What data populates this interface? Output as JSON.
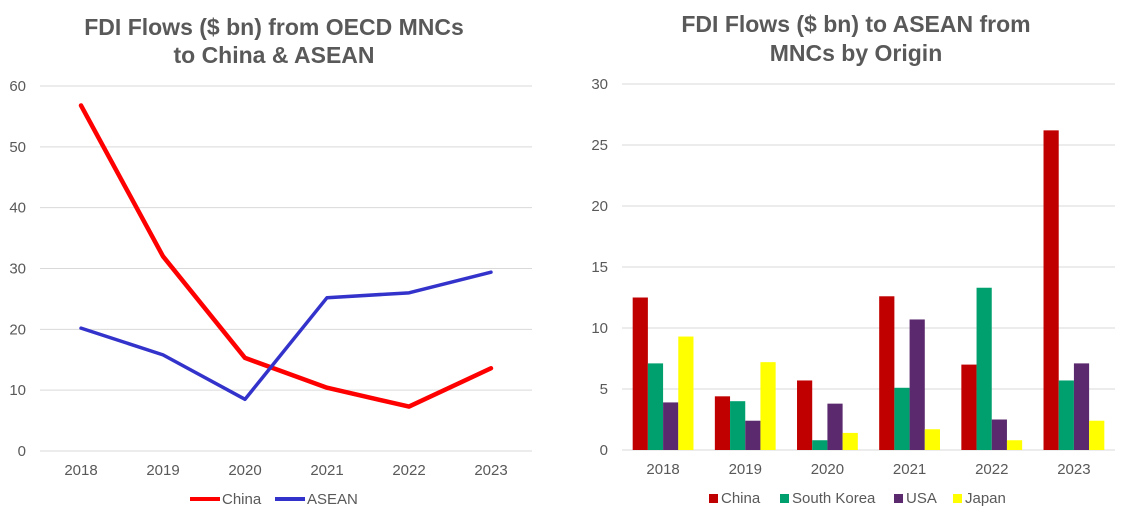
{
  "chart_data": [
    {
      "type": "line",
      "title_line1": "FDI Flows ($ bn) from OECD MNCs",
      "title_line2": "to China & ASEAN",
      "categories": [
        "2018",
        "2019",
        "2020",
        "2021",
        "2022",
        "2023"
      ],
      "series": [
        {
          "name": "China",
          "color": "#ff0000",
          "values": [
            56.8,
            32.0,
            15.3,
            10.4,
            7.3,
            13.6
          ]
        },
        {
          "name": "ASEAN",
          "color": "#3333cc",
          "values": [
            20.2,
            15.8,
            8.5,
            25.2,
            26.0,
            29.4
          ]
        }
      ],
      "ylim": [
        0,
        60
      ],
      "yticks": [
        "0",
        "10",
        "20",
        "30",
        "40",
        "50",
        "60"
      ],
      "grid": true,
      "legend": "bottom",
      "xlabel": "",
      "ylabel": ""
    },
    {
      "type": "bar",
      "title_line1": "FDI Flows ($ bn) to ASEAN from",
      "title_line2": "MNCs by Origin",
      "categories": [
        "2018",
        "2019",
        "2020",
        "2021",
        "2022",
        "2023"
      ],
      "series": [
        {
          "name": "China",
          "color": "#c00000",
          "values": [
            12.5,
            4.4,
            5.7,
            12.6,
            7.0,
            26.2
          ]
        },
        {
          "name": "South Korea",
          "color": "#00a06e",
          "values": [
            7.1,
            4.0,
            0.8,
            5.1,
            13.3,
            5.7
          ]
        },
        {
          "name": "USA",
          "color": "#5b2a6e",
          "values": [
            3.9,
            2.4,
            3.8,
            10.7,
            2.5,
            7.1
          ]
        },
        {
          "name": "Japan",
          "color": "#ffff00",
          "values": [
            9.3,
            7.2,
            1.4,
            1.7,
            0.8,
            2.4
          ]
        }
      ],
      "ylim": [
        0,
        30
      ],
      "yticks": [
        "0",
        "5",
        "10",
        "15",
        "20",
        "25",
        "30"
      ],
      "grid": true,
      "legend": "bottom",
      "xlabel": "",
      "ylabel": ""
    }
  ]
}
